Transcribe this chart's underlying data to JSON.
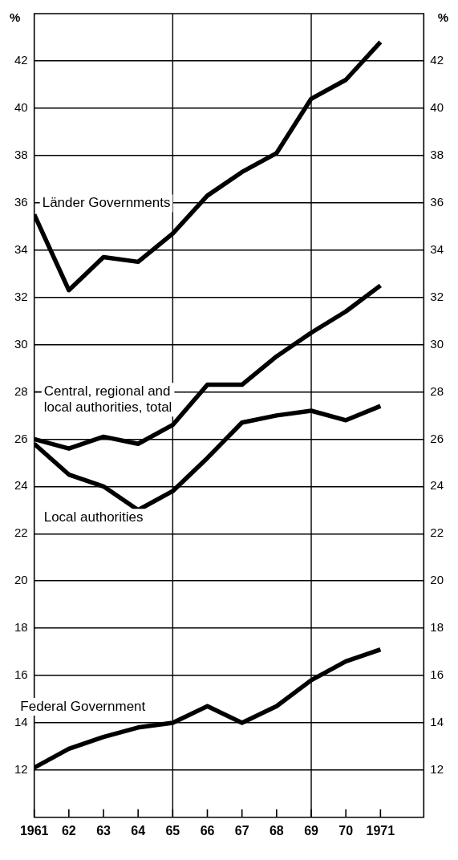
{
  "chart_data": {
    "type": "line",
    "ylabel": "%",
    "y2label": "%",
    "x": [
      1961,
      1962,
      1963,
      1964,
      1965,
      1966,
      1967,
      1968,
      1969,
      1970,
      1971
    ],
    "xlim": [
      1961,
      1972.25
    ],
    "xticks": [
      {
        "value": 1961,
        "label": "1961"
      },
      {
        "value": 1962,
        "label": "62"
      },
      {
        "value": 1963,
        "label": "63"
      },
      {
        "value": 1964,
        "label": "64"
      },
      {
        "value": 1965,
        "label": "65"
      },
      {
        "value": 1966,
        "label": "66"
      },
      {
        "value": 1967,
        "label": "67"
      },
      {
        "value": 1968,
        "label": "68"
      },
      {
        "value": 1969,
        "label": "69"
      },
      {
        "value": 1970,
        "label": "70"
      },
      {
        "value": 1971,
        "label": "1971"
      }
    ],
    "ylim": [
      10,
      44
    ],
    "yticks": [
      12,
      14,
      16,
      18,
      20,
      22,
      24,
      26,
      28,
      30,
      32,
      34,
      36,
      38,
      40,
      42
    ],
    "y2lim": [
      10,
      44
    ],
    "y2ticks": [
      12,
      14,
      16,
      18,
      20,
      22,
      24,
      26,
      28,
      30,
      32,
      34,
      36,
      38,
      40,
      42
    ],
    "grid": "y",
    "legend": false,
    "marker": "none",
    "line_style": "solid",
    "ref_lines": [
      {
        "axis": "x",
        "value": 1965,
        "label": null
      },
      {
        "axis": "x",
        "value": 1969,
        "label": null
      }
    ],
    "series": [
      {
        "name": "Länder Governments",
        "color": "#000000",
        "values": [
          35.5,
          32.3,
          33.7,
          33.5,
          34.7,
          36.3,
          37.3,
          38.1,
          40.4,
          41.2,
          42.8
        ]
      },
      {
        "name": "Central, regional and local authorities, total",
        "color": "#000000",
        "values": [
          26.0,
          25.6,
          26.1,
          25.8,
          26.6,
          28.3,
          28.3,
          29.5,
          30.5,
          31.4,
          32.5
        ]
      },
      {
        "name": "Local authorities",
        "color": "#000000",
        "values": [
          25.8,
          24.5,
          24.0,
          23.0,
          23.8,
          25.2,
          26.7,
          27.0,
          27.2,
          26.8,
          27.4
        ]
      },
      {
        "name": "Federal Government",
        "color": "#000000",
        "values": [
          12.1,
          12.9,
          13.4,
          13.8,
          14.0,
          14.7,
          14.0,
          14.7,
          15.8,
          16.6,
          17.1
        ]
      }
    ]
  }
}
